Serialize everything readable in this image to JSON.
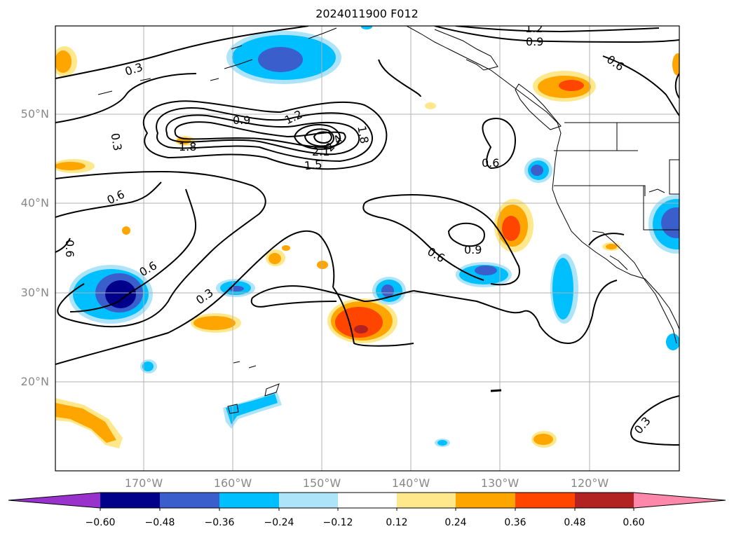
{
  "title": "2024011900 F012",
  "axes": {
    "latitude_labels": [
      "50°N",
      "40°N",
      "30°N",
      "20°N"
    ],
    "longitude_labels": [
      "170°W",
      "160°W",
      "150°W",
      "140°W",
      "130°W",
      "120°W"
    ]
  },
  "contour_labels": [
    "0.3",
    "0.6",
    "0.9",
    "1.2",
    "1.5",
    "1.8",
    "2.1",
    "2.4",
    "0.9",
    "1.2",
    "0.6",
    "0.9",
    "0.6",
    "0.3",
    "0.6",
    "0.6",
    "0.3",
    "1.8",
    "0.6",
    "0.3"
  ],
  "colorbar": {
    "ticks": [
      "−0.60",
      "−0.48",
      "−0.36",
      "−0.24",
      "−0.12",
      "0.12",
      "0.24",
      "0.36",
      "0.48",
      "0.60"
    ],
    "colors": [
      "#9932cc",
      "#00008b",
      "#3a5fcd",
      "#00bfff",
      "#aee4fa",
      "#ffffff",
      "#ffe88c",
      "#ffa500",
      "#ff4500",
      "#b22222",
      "#ff88aa"
    ]
  }
}
